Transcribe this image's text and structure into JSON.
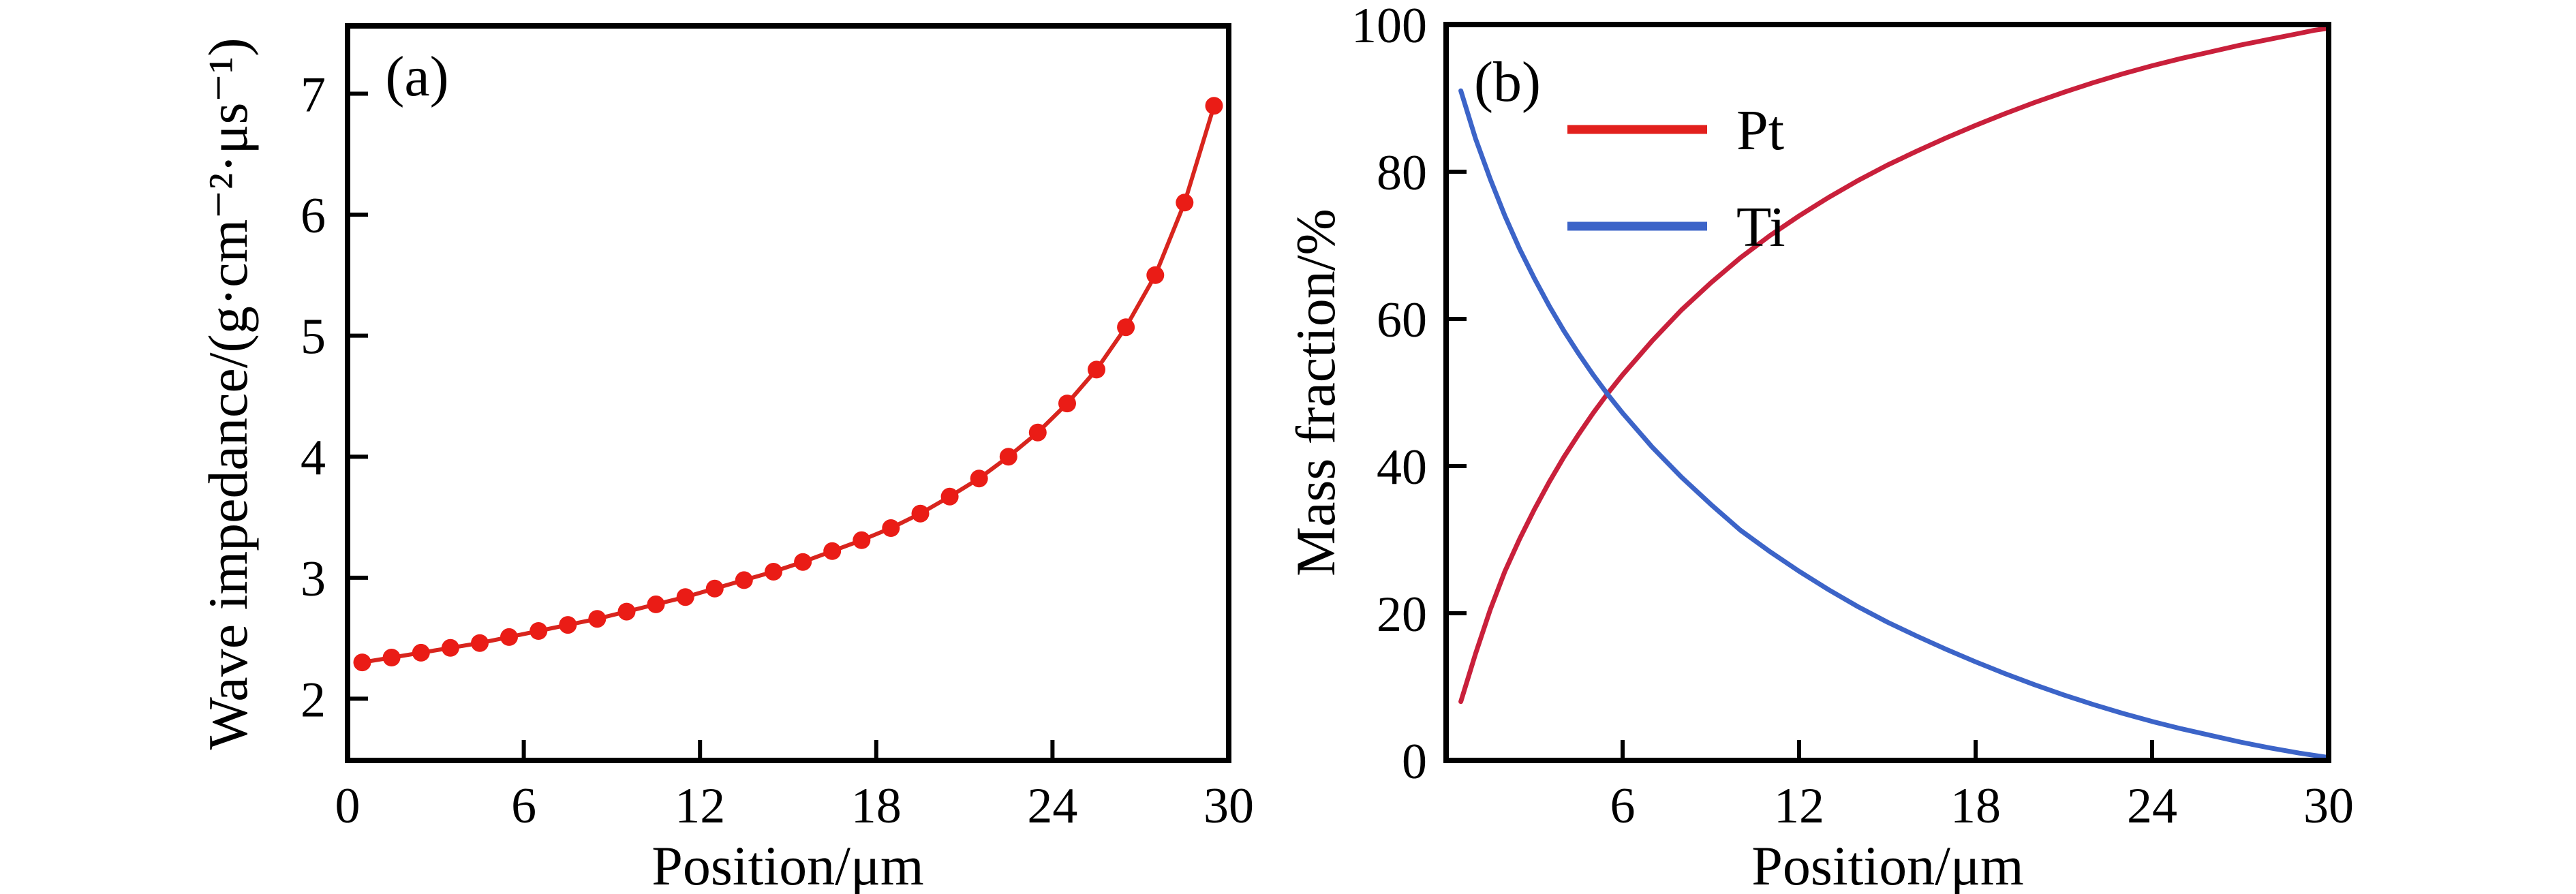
{
  "figure": {
    "background": "#ffffff",
    "text_color": "#000000"
  },
  "chart_data": [
    {
      "id": "a",
      "type": "line",
      "panel_label": "(a)",
      "xlabel": "Position/μm",
      "ylabel": "Wave impedance/(g·cm⁻²·μs⁻¹)",
      "xlim": [
        0,
        30
      ],
      "ylim": [
        1.49,
        7.56
      ],
      "xticks": [
        0,
        6,
        12,
        18,
        24,
        30
      ],
      "yticks": [
        2,
        3,
        4,
        5,
        6,
        7
      ],
      "grid": false,
      "series": [
        {
          "id": "impedance",
          "marker": "circle",
          "marker_color": "#ea1c16",
          "line_color": "#d8251e",
          "x": [
            0.5,
            1.5,
            2.5,
            3.5,
            4.5,
            5.5,
            6.5,
            7.5,
            8.5,
            9.5,
            10.5,
            11.5,
            12.5,
            13.5,
            14.5,
            15.5,
            16.5,
            17.5,
            18.5,
            19.5,
            20.5,
            21.5,
            22.5,
            23.5,
            24.5,
            25.5,
            26.5,
            27.5,
            28.5,
            29.5
          ],
          "y": [
            2.3,
            2.34,
            2.38,
            2.42,
            2.46,
            2.51,
            2.56,
            2.61,
            2.66,
            2.72,
            2.78,
            2.84,
            2.91,
            2.98,
            3.05,
            3.13,
            3.22,
            3.31,
            3.41,
            3.53,
            3.67,
            3.82,
            4.0,
            4.2,
            4.44,
            4.72,
            5.07,
            5.5,
            6.1,
            6.9
          ]
        }
      ]
    },
    {
      "id": "b",
      "type": "line",
      "panel_label": "(b)",
      "xlabel": "Position/μm",
      "ylabel": "Mass fraction/%",
      "xlim": [
        0,
        30
      ],
      "ylim": [
        0,
        100
      ],
      "xticks": [
        6,
        12,
        18,
        24,
        30
      ],
      "yticks": [
        0,
        20,
        40,
        60,
        80,
        100
      ],
      "grid": false,
      "legend": {
        "position": "upper-left-inside",
        "entries": [
          {
            "label": "Pt",
            "color": "#e2201d"
          },
          {
            "label": "Ti",
            "color": "#3c64c8"
          }
        ]
      },
      "series": [
        {
          "id": "Pt",
          "name": "Pt",
          "line_color": "#c9203b",
          "x": [
            0.5,
            1,
            1.5,
            2,
            2.5,
            3,
            3.5,
            4,
            4.5,
            5,
            5.5,
            6,
            7,
            8,
            9,
            10,
            11,
            12,
            13,
            14,
            15,
            16,
            17,
            18,
            19,
            20,
            21,
            22,
            23,
            24,
            25,
            26,
            27,
            28,
            29,
            29.5,
            30
          ],
          "y": [
            8.0,
            14.5,
            20.5,
            25.7,
            30.1,
            34.1,
            37.8,
            41.2,
            44.3,
            47.2,
            49.9,
            52.4,
            57.0,
            61.2,
            64.9,
            68.3,
            71.3,
            74.0,
            76.5,
            78.8,
            80.9,
            82.8,
            84.6,
            86.3,
            87.9,
            89.4,
            90.8,
            92.1,
            93.3,
            94.4,
            95.4,
            96.3,
            97.2,
            98.0,
            98.8,
            99.2,
            99.5
          ]
        },
        {
          "id": "Ti",
          "name": "Ti",
          "line_color": "#3c64c8",
          "x": [
            0.5,
            1,
            1.5,
            2,
            2.5,
            3,
            3.5,
            4,
            4.5,
            5,
            5.5,
            6,
            7,
            8,
            9,
            10,
            11,
            12,
            13,
            14,
            15,
            16,
            17,
            18,
            19,
            20,
            21,
            22,
            23,
            24,
            25,
            26,
            27,
            28,
            29,
            29.5,
            30
          ],
          "y": [
            91.0,
            84.5,
            79.0,
            74.0,
            69.5,
            65.5,
            61.8,
            58.4,
            55.3,
            52.4,
            49.7,
            47.2,
            42.6,
            38.5,
            34.8,
            31.3,
            28.4,
            25.7,
            23.2,
            20.9,
            18.8,
            16.9,
            15.1,
            13.4,
            11.8,
            10.3,
            8.9,
            7.6,
            6.4,
            5.3,
            4.3,
            3.4,
            2.5,
            1.7,
            1.0,
            0.7,
            0.4
          ]
        }
      ]
    }
  ]
}
